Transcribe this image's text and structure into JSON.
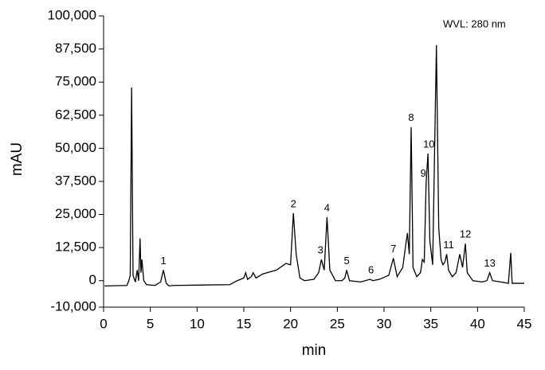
{
  "chart_data": {
    "type": "line",
    "annotations": [
      {
        "text": "WVL: 280 nm"
      },
      {
        "text": "1",
        "x": 6.4
      },
      {
        "text": "2",
        "x": 20.3
      },
      {
        "text": "3",
        "x": 23.2
      },
      {
        "text": "4",
        "x": 23.9
      },
      {
        "text": "5",
        "x": 26.0
      },
      {
        "text": "6",
        "x": 28.6
      },
      {
        "text": "7",
        "x": 31.0
      },
      {
        "text": "8",
        "x": 32.9
      },
      {
        "text": "9",
        "x": 34.2
      },
      {
        "text": "10",
        "x": 34.8
      },
      {
        "text": "11",
        "x": 36.9
      },
      {
        "text": "12",
        "x": 38.7
      },
      {
        "text": "13",
        "x": 41.3
      }
    ],
    "xlabel": "min",
    "ylabel": "mAU",
    "color": "#000000",
    "x": [
      0.1,
      2.5,
      2.7,
      2.85,
      3.0,
      3.15,
      3.4,
      3.6,
      3.75,
      3.9,
      4.0,
      4.1,
      4.3,
      4.6,
      5.5,
      6.1,
      6.4,
      6.7,
      7.0,
      7.5,
      13.5,
      14.3,
      15.0,
      15.2,
      15.4,
      15.8,
      16.0,
      16.3,
      17.0,
      18.5,
      19.5,
      20.0,
      20.3,
      20.6,
      21.0,
      21.5,
      22.5,
      23.0,
      23.3,
      23.6,
      23.9,
      24.2,
      24.8,
      25.5,
      25.8,
      26.0,
      26.3,
      27.5,
      28.5,
      28.8,
      29.5,
      30.5,
      31.0,
      31.4,
      32.0,
      32.3,
      32.5,
      32.7,
      32.9,
      33.1,
      33.5,
      33.9,
      34.1,
      34.3,
      34.5,
      34.7,
      34.9,
      35.2,
      35.6,
      35.85,
      36.1,
      36.3,
      36.5,
      36.7,
      36.9,
      37.3,
      37.7,
      38.1,
      38.4,
      38.7,
      38.9,
      39.5,
      40.5,
      41.0,
      41.3,
      41.6,
      42.5,
      43.3,
      43.55,
      43.7,
      45
    ],
    "values": [
      -2000,
      -1800,
      0,
      2000,
      73000,
      2000,
      -500,
      4000,
      0,
      16000,
      3000,
      8000,
      0,
      -1500,
      -1800,
      -500,
      4000,
      -1000,
      -2000,
      -1800,
      -1500,
      0,
      1000,
      3000,
      500,
      1500,
      3000,
      1000,
      2500,
      4000,
      6500,
      6000,
      25500,
      10000,
      1000,
      0,
      500,
      3000,
      8000,
      4000,
      24000,
      4000,
      0,
      0,
      1000,
      4000,
      0,
      -500,
      500,
      0,
      500,
      2000,
      8500,
      1500,
      5000,
      13000,
      18000,
      10000,
      58000,
      5000,
      1500,
      3000,
      8000,
      7000,
      37000,
      48000,
      15000,
      6000,
      89000,
      20000,
      8000,
      6000,
      7000,
      10000,
      4000,
      1500,
      3000,
      10000,
      5000,
      14000,
      3000,
      0,
      -500,
      0,
      3000,
      0,
      -500,
      -1000,
      10500,
      -1000,
      -1000
    ],
    "xlim": [
      0,
      45
    ],
    "xticks": [
      0,
      5,
      10,
      15,
      20,
      25,
      30,
      35,
      40,
      45
    ],
    "ylim": [
      -10000,
      100000
    ],
    "yticks": [
      {
        "value": -10000,
        "label": "-10,000"
      },
      0,
      {
        "value": 12500,
        "label": "12,500"
      },
      {
        "value": 25000,
        "label": "25,000"
      },
      {
        "value": 37500,
        "label": "37,500"
      },
      {
        "value": 50000,
        "label": "50,000"
      },
      {
        "value": 62500,
        "label": "62,500"
      },
      {
        "value": 75000,
        "label": "75,000"
      },
      {
        "value": 87500,
        "label": "87,500"
      },
      {
        "value": 100000,
        "label": "100,000"
      }
    ]
  }
}
